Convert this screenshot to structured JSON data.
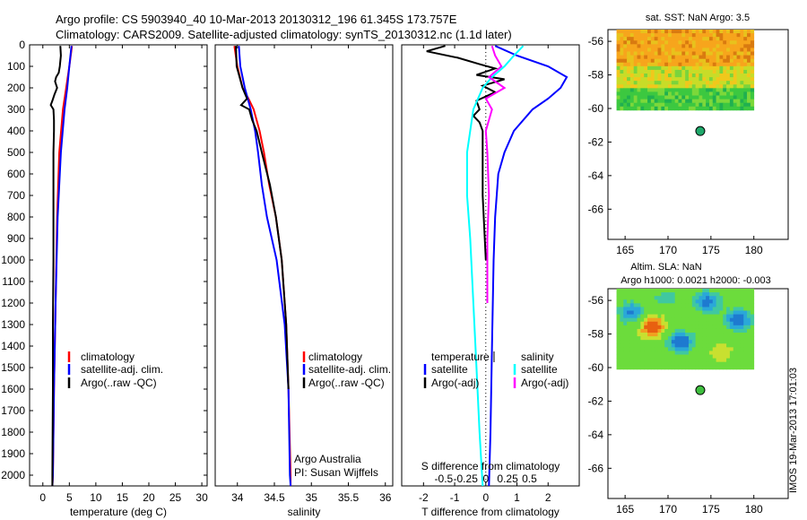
{
  "header": {
    "line1": "Argo profile: CS 5903940_40 10-Mar-2013 20130312_196 61.345S 173.757E",
    "line2": "Climatology: CARS2009. Satellite-adjusted climatology: synTS_20130312.nc (1.1d later)"
  },
  "stamp": "IMOS 19-Mar-2013 17:01:03",
  "colors": {
    "climatology": "#ff0000",
    "satellite": "#0000ff",
    "argo": "#000000",
    "salinity_sat": "#00ffff",
    "salinity_argo": "#ff00ff"
  },
  "chart_data": [
    {
      "type": "line",
      "id": "temperature-profile",
      "xlabel": "temperature (deg C)",
      "ylabel": "",
      "xlim": [
        -2.5,
        31
      ],
      "ylim": [
        2050,
        0
      ],
      "xticks": [
        0,
        5,
        10,
        15,
        20,
        25,
        30
      ],
      "yticks": [
        0,
        100,
        200,
        300,
        400,
        500,
        600,
        700,
        800,
        900,
        1000,
        1100,
        1200,
        1300,
        1400,
        1500,
        1600,
        1700,
        1800,
        1900,
        2000
      ],
      "legend": [
        "climatology",
        "satellite-adj. clim.",
        "Argo(..raw -QC)"
      ],
      "legend_position": "lower-center",
      "series": [
        {
          "name": "climatology",
          "color": "#ff0000",
          "y": [
            5,
            100,
            200,
            300,
            500,
            800,
            1200,
            1600,
            2000,
            2050
          ],
          "x": [
            5.5,
            5.0,
            4.4,
            3.8,
            3.1,
            2.7,
            2.4,
            2.1,
            1.9,
            1.8
          ]
        },
        {
          "name": "satellite-adj. clim.",
          "color": "#0000ff",
          "y": [
            5,
            100,
            200,
            300,
            500,
            800,
            1200,
            1600,
            2000,
            2050
          ],
          "x": [
            5.4,
            5.0,
            4.6,
            4.1,
            3.4,
            2.8,
            2.4,
            2.1,
            1.9,
            1.8
          ]
        },
        {
          "name": "Argo(..raw -QC)",
          "color": "#000000",
          "y": [
            5,
            50,
            100,
            130,
            150,
            170,
            200,
            230,
            260,
            280,
            300,
            350,
            400,
            500,
            600,
            800,
            1000,
            1300,
            1600,
            2000,
            2050
          ],
          "x": [
            3.3,
            3.4,
            3.2,
            3.0,
            2.5,
            2.3,
            2.7,
            2.2,
            1.8,
            1.5,
            2.0,
            2.1,
            2.1,
            2.0,
            2.0,
            2.0,
            2.0,
            1.9,
            1.9,
            1.8,
            1.8
          ]
        }
      ]
    },
    {
      "type": "line",
      "id": "salinity-profile",
      "xlabel": "salinity",
      "xlim": [
        33.7,
        36.1
      ],
      "ylim": [
        2050,
        0
      ],
      "xticks": [
        34,
        34.5,
        35,
        35.5,
        36
      ],
      "legend": [
        "climatology",
        "satellite-adj. clim.",
        "Argo(..raw -QC)"
      ],
      "legend_position": "lower-center",
      "annotations": [
        "Argo Australia",
        "PI: Susan Wijffels"
      ],
      "series": [
        {
          "name": "climatology",
          "color": "#ff0000",
          "y": [
            5,
            100,
            200,
            250,
            300,
            400,
            500,
            650,
            800,
            1000,
            1300,
            1600,
            2000,
            2050
          ],
          "x": [
            33.96,
            34.0,
            34.07,
            34.15,
            34.22,
            34.3,
            34.36,
            34.43,
            34.52,
            34.6,
            34.66,
            34.69,
            34.72,
            34.72
          ]
        },
        {
          "name": "satellite-adj. clim.",
          "color": "#0000ff",
          "y": [
            5,
            100,
            200,
            300,
            400,
            500,
            650,
            800,
            1000,
            1300,
            1600,
            2000,
            2050
          ],
          "x": [
            34.02,
            34.04,
            34.1,
            34.18,
            34.24,
            34.28,
            34.33,
            34.4,
            34.53,
            34.64,
            34.69,
            34.71,
            34.72
          ]
        },
        {
          "name": "Argo(..raw -QC)",
          "color": "#000000",
          "y": [
            5,
            100,
            150,
            200,
            250,
            280,
            300,
            350,
            400,
            500,
            650,
            800,
            1000,
            1300,
            1600
          ],
          "x": [
            33.98,
            33.99,
            34.03,
            34.07,
            34.13,
            34.05,
            34.16,
            34.2,
            34.26,
            34.33,
            34.44,
            34.52,
            34.6,
            34.66,
            34.69
          ]
        }
      ]
    },
    {
      "type": "line",
      "id": "difference-profile",
      "xlabel": "T difference from climatology",
      "top_axis_label": "S difference from climatology",
      "xlim": [
        -2.7,
        3.0
      ],
      "ylim": [
        2050,
        0
      ],
      "xticks": [
        -2,
        -1,
        0,
        1,
        2
      ],
      "top_ticks": [
        "-0.5",
        "-0.25",
        "0",
        "0.25",
        "0.5"
      ],
      "legend_left_title": "temperature",
      "legend_right_title": "salinity",
      "legend": [
        "satellite",
        "Argo(-adj)",
        "satellite",
        "Argo(-adj)"
      ],
      "series": [
        {
          "name": "satellite (temperature)",
          "color": "#0000ff",
          "y": [
            5,
            50,
            100,
            150,
            200,
            250,
            300,
            400,
            500,
            600,
            800,
            1000,
            1400,
            1800,
            2050
          ],
          "x": [
            0.3,
            1.0,
            2.0,
            2.6,
            2.4,
            2.0,
            1.5,
            0.9,
            0.6,
            0.4,
            0.3,
            0.25,
            0.2,
            0.15,
            0.1
          ]
        },
        {
          "name": "Argo(-adj) (temperature)",
          "color": "#000000",
          "y": [
            5,
            30,
            60,
            90,
            110,
            140,
            160,
            190,
            220,
            260,
            300,
            330,
            360,
            400,
            500,
            700,
            1000
          ],
          "x": [
            -1.3,
            -1.9,
            -0.9,
            -0.2,
            0.3,
            -0.3,
            0.6,
            -0.1,
            0.3,
            -0.3,
            -0.2,
            -0.4,
            -0.2,
            -0.1,
            -0.1,
            -0.1,
            0.0
          ]
        },
        {
          "name": "satellite (salinity)",
          "color": "#00ffff",
          "y": [
            5,
            50,
            100,
            150,
            200,
            300,
            400,
            500,
            700,
            900,
            1200,
            1500,
            1800,
            2050
          ],
          "x": [
            1.2,
            0.9,
            0.6,
            0.2,
            -0.1,
            -0.4,
            -0.5,
            -0.6,
            -0.6,
            -0.5,
            -0.4,
            -0.3,
            -0.2,
            -0.1
          ]
        },
        {
          "name": "Argo(-adj) (salinity)",
          "color": "#ff00ff",
          "y": [
            5,
            50,
            100,
            150,
            200,
            250,
            300,
            400,
            500,
            700,
            900,
            1200
          ],
          "x": [
            0.2,
            0.3,
            0.5,
            0.1,
            0.6,
            0.0,
            0.2,
            0.0,
            0.05,
            0.1,
            0.05,
            0.05
          ]
        }
      ]
    },
    {
      "type": "heatmap",
      "id": "sst-map",
      "title": "sat. SST: NaN Argo: 3.5",
      "xlim": [
        163,
        184
      ],
      "ylim": [
        -67.8,
        -55.3
      ],
      "xticks": [
        165,
        170,
        175,
        180
      ],
      "yticks": [
        -56,
        -58,
        -60,
        -62,
        -64,
        -66
      ],
      "float_position": {
        "lon": 173.757,
        "lat": -61.345
      }
    },
    {
      "type": "heatmap",
      "id": "sla-map",
      "title": "Altim. SLA: NaN",
      "subtitle": "Argo h1000: 0.0021 h2000: -0.003",
      "xlim": [
        163,
        184
      ],
      "ylim": [
        -67.8,
        -55.3
      ],
      "xticks": [
        165,
        170,
        175,
        180
      ],
      "yticks": [
        -56,
        -58,
        -60,
        -62,
        -64,
        -66
      ],
      "float_position": {
        "lon": 173.757,
        "lat": -61.345
      }
    }
  ]
}
